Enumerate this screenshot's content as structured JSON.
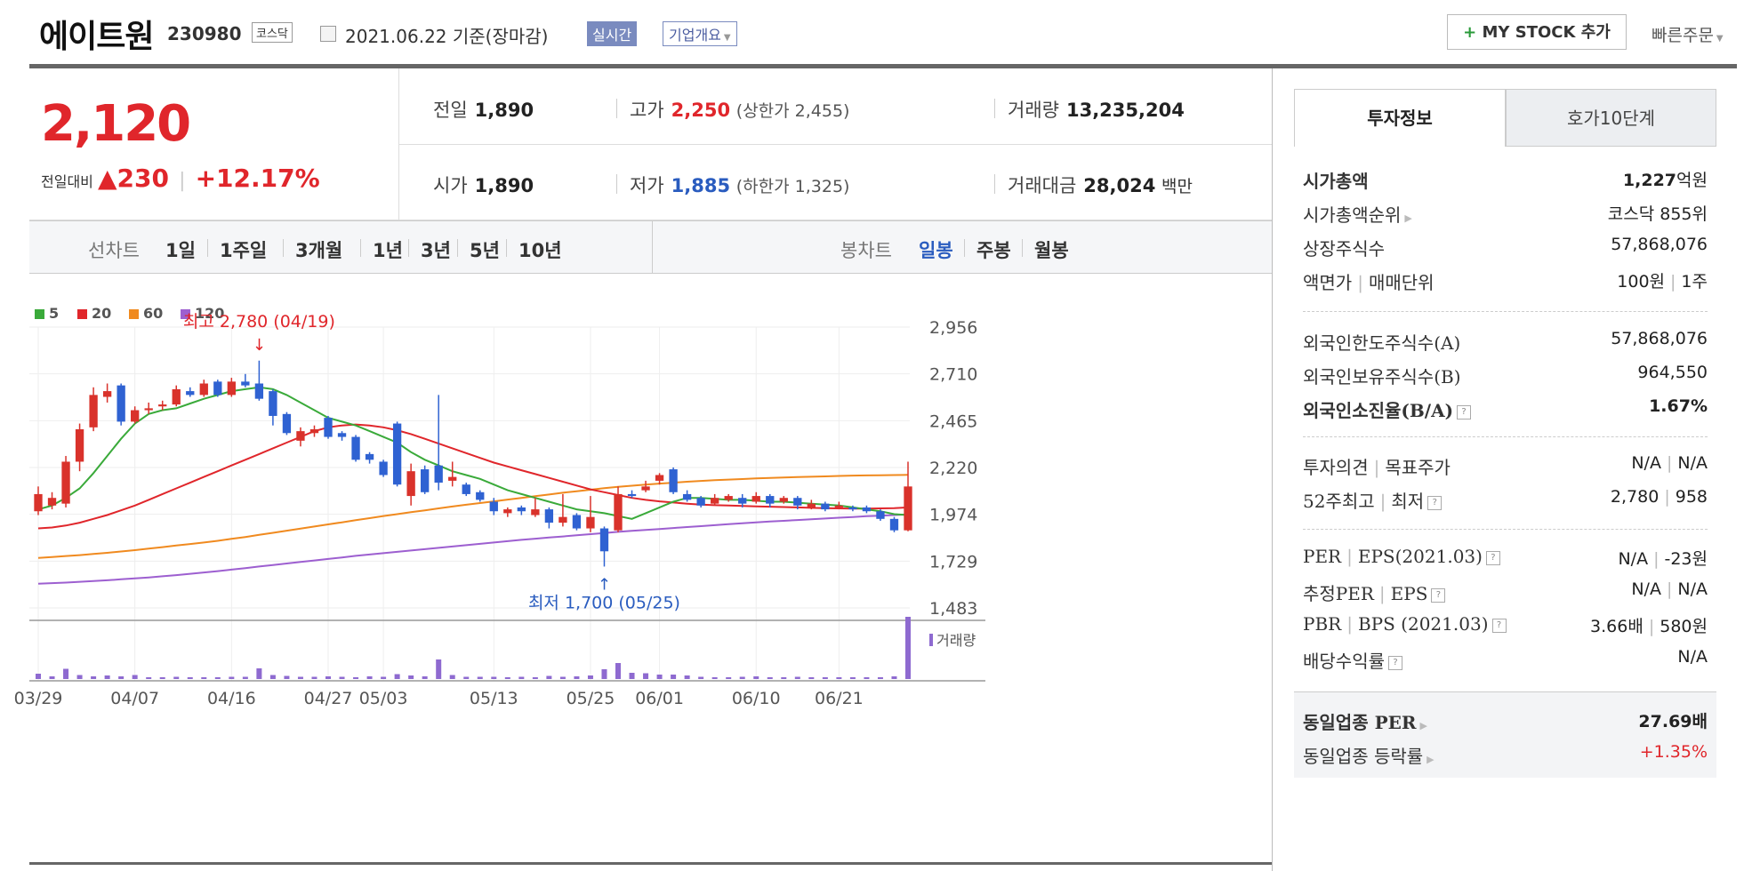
{
  "header": {
    "name": "에이트원",
    "code": "230980",
    "market": "코스닥",
    "date": "2021.06.22 기준(장마감)",
    "realtime": "실시간",
    "company_info": "기업개요",
    "mystock": "MY STOCK 추가",
    "quick_order": "빠른주문"
  },
  "price": {
    "current": "2,120",
    "change_label": "전일대비",
    "change_value": "230",
    "change_pct": "+12.17%"
  },
  "summary": {
    "prev": {
      "label": "전일",
      "value": "1,890"
    },
    "high": {
      "label": "고가",
      "value": "2,250",
      "sub": "(상한가 2,455)"
    },
    "volume": {
      "label": "거래량",
      "value": "13,235,204"
    },
    "open": {
      "label": "시가",
      "value": "1,890"
    },
    "low": {
      "label": "저가",
      "value": "1,885",
      "sub": "(하한가 1,325)"
    },
    "amount": {
      "label": "거래대금",
      "value": "28,024",
      "unit": "백만"
    }
  },
  "toolbar": {
    "line_label": "선차트",
    "periods": [
      "1일",
      "1주일",
      "3개월",
      "1년",
      "3년",
      "5년",
      "10년"
    ],
    "candle_label": "봉차트",
    "candles": [
      "일봉",
      "주봉",
      "월봉"
    ]
  },
  "chart_data": {
    "type": "candlestick",
    "legend": [
      "5",
      "20",
      "60",
      "120"
    ],
    "ma_colors": {
      "5": "#3aaa3a",
      "20": "#e0262b",
      "60": "#f08a1f",
      "120": "#9d5fd0"
    },
    "up_color": "#d9322b",
    "down_color": "#2f62d2",
    "y_ticks": [
      "2,956",
      "2,710",
      "2,465",
      "2,220",
      "1,974",
      "1,729",
      "1,483"
    ],
    "ylim": [
      1483,
      2956
    ],
    "x_labels": [
      {
        "i": 0,
        "label": "03/29"
      },
      {
        "i": 7,
        "label": "04/07"
      },
      {
        "i": 14,
        "label": "04/16"
      },
      {
        "i": 21,
        "label": "04/27"
      },
      {
        "i": 25,
        "label": "05/03"
      },
      {
        "i": 33,
        "label": "05/13"
      },
      {
        "i": 40,
        "label": "05/25"
      },
      {
        "i": 45,
        "label": "06/01"
      },
      {
        "i": 52,
        "label": "06/10"
      },
      {
        "i": 58,
        "label": "06/21"
      }
    ],
    "high_annotation": "최고 2,780 (04/19)",
    "low_annotation": "최저 1,700 (05/25)",
    "volume_label": "거래량",
    "candles": [
      {
        "o": 1990,
        "c": 2080,
        "h": 2120,
        "l": 1970
      },
      {
        "o": 2020,
        "c": 2060,
        "h": 2090,
        "l": 2000
      },
      {
        "o": 2030,
        "c": 2250,
        "h": 2280,
        "l": 2010
      },
      {
        "o": 2250,
        "c": 2420,
        "h": 2450,
        "l": 2200
      },
      {
        "o": 2430,
        "c": 2600,
        "h": 2640,
        "l": 2410
      },
      {
        "o": 2590,
        "c": 2620,
        "h": 2660,
        "l": 2560
      },
      {
        "o": 2650,
        "c": 2460,
        "h": 2660,
        "l": 2440
      },
      {
        "o": 2460,
        "c": 2520,
        "h": 2540,
        "l": 2450
      },
      {
        "o": 2520,
        "c": 2530,
        "h": 2560,
        "l": 2500
      },
      {
        "o": 2540,
        "c": 2550,
        "h": 2570,
        "l": 2520
      },
      {
        "o": 2550,
        "c": 2630,
        "h": 2650,
        "l": 2540
      },
      {
        "o": 2620,
        "c": 2600,
        "h": 2640,
        "l": 2590
      },
      {
        "o": 2600,
        "c": 2660,
        "h": 2680,
        "l": 2590
      },
      {
        "o": 2670,
        "c": 2600,
        "h": 2680,
        "l": 2590
      },
      {
        "o": 2600,
        "c": 2670,
        "h": 2690,
        "l": 2590
      },
      {
        "o": 2670,
        "c": 2650,
        "h": 2710,
        "l": 2640
      },
      {
        "o": 2660,
        "c": 2580,
        "h": 2780,
        "l": 2570
      },
      {
        "o": 2620,
        "c": 2490,
        "h": 2630,
        "l": 2440
      },
      {
        "o": 2500,
        "c": 2400,
        "h": 2510,
        "l": 2390
      },
      {
        "o": 2360,
        "c": 2410,
        "h": 2430,
        "l": 2330
      },
      {
        "o": 2400,
        "c": 2420,
        "h": 2440,
        "l": 2380
      },
      {
        "o": 2480,
        "c": 2380,
        "h": 2490,
        "l": 2370
      },
      {
        "o": 2400,
        "c": 2380,
        "h": 2410,
        "l": 2360
      },
      {
        "o": 2380,
        "c": 2260,
        "h": 2390,
        "l": 2250
      },
      {
        "o": 2290,
        "c": 2260,
        "h": 2300,
        "l": 2240
      },
      {
        "o": 2250,
        "c": 2180,
        "h": 2260,
        "l": 2170
      },
      {
        "o": 2450,
        "c": 2130,
        "h": 2460,
        "l": 2120
      },
      {
        "o": 2070,
        "c": 2200,
        "h": 2240,
        "l": 2020
      },
      {
        "o": 2210,
        "c": 2090,
        "h": 2230,
        "l": 2080
      },
      {
        "o": 2230,
        "c": 2140,
        "h": 2600,
        "l": 2100
      },
      {
        "o": 2150,
        "c": 2170,
        "h": 2250,
        "l": 2120
      },
      {
        "o": 2130,
        "c": 2080,
        "h": 2140,
        "l": 2070
      },
      {
        "o": 2090,
        "c": 2050,
        "h": 2100,
        "l": 2040
      },
      {
        "o": 2040,
        "c": 1990,
        "h": 2060,
        "l": 1970
      },
      {
        "o": 1980,
        "c": 2000,
        "h": 2010,
        "l": 1960
      },
      {
        "o": 2010,
        "c": 1990,
        "h": 2020,
        "l": 1970
      },
      {
        "o": 1970,
        "c": 2000,
        "h": 2060,
        "l": 1960
      },
      {
        "o": 2000,
        "c": 1930,
        "h": 2010,
        "l": 1900
      },
      {
        "o": 1930,
        "c": 1960,
        "h": 2080,
        "l": 1910
      },
      {
        "o": 1970,
        "c": 1900,
        "h": 1980,
        "l": 1890
      },
      {
        "o": 1900,
        "c": 1960,
        "h": 2070,
        "l": 1880
      },
      {
        "o": 1900,
        "c": 1780,
        "h": 1910,
        "l": 1700
      },
      {
        "o": 1890,
        "c": 2080,
        "h": 2120,
        "l": 1880
      },
      {
        "o": 2080,
        "c": 2070,
        "h": 2100,
        "l": 2060
      },
      {
        "o": 2100,
        "c": 2120,
        "h": 2150,
        "l": 2090
      },
      {
        "o": 2150,
        "c": 2180,
        "h": 2190,
        "l": 2130
      },
      {
        "o": 2210,
        "c": 2090,
        "h": 2220,
        "l": 2080
      },
      {
        "o": 2080,
        "c": 2050,
        "h": 2100,
        "l": 2040
      },
      {
        "o": 2060,
        "c": 2020,
        "h": 2070,
        "l": 2010
      },
      {
        "o": 2030,
        "c": 2060,
        "h": 2080,
        "l": 2020
      },
      {
        "o": 2050,
        "c": 2070,
        "h": 2080,
        "l": 2040
      },
      {
        "o": 2060,
        "c": 2030,
        "h": 2080,
        "l": 2010
      },
      {
        "o": 2040,
        "c": 2070,
        "h": 2090,
        "l": 2030
      },
      {
        "o": 2070,
        "c": 2030,
        "h": 2080,
        "l": 2010
      },
      {
        "o": 2040,
        "c": 2060,
        "h": 2070,
        "l": 2030
      },
      {
        "o": 2060,
        "c": 2020,
        "h": 2070,
        "l": 2000
      },
      {
        "o": 2010,
        "c": 2030,
        "h": 2050,
        "l": 2000
      },
      {
        "o": 2030,
        "c": 2000,
        "h": 2040,
        "l": 1990
      },
      {
        "o": 2010,
        "c": 2020,
        "h": 2040,
        "l": 2000
      },
      {
        "o": 2010,
        "c": 2000,
        "h": 2020,
        "l": 1990
      },
      {
        "o": 2010,
        "c": 1990,
        "h": 2020,
        "l": 1980
      },
      {
        "o": 1990,
        "c": 1950,
        "h": 2000,
        "l": 1940
      },
      {
        "o": 1950,
        "c": 1890,
        "h": 1960,
        "l": 1880
      },
      {
        "o": 1890,
        "c": 2120,
        "h": 2250,
        "l": 1885
      }
    ],
    "volumes": [
      1.2,
      0.6,
      2.3,
      0.9,
      0.6,
      0.8,
      0.6,
      0.9,
      0.4,
      0.4,
      0.5,
      0.4,
      0.4,
      0.4,
      0.5,
      0.5,
      2.4,
      0.9,
      0.7,
      0.5,
      0.5,
      0.6,
      0.5,
      0.4,
      0.6,
      0.5,
      1.1,
      0.8,
      0.6,
      4.4,
      0.9,
      0.5,
      0.5,
      0.5,
      0.4,
      0.5,
      0.4,
      0.7,
      0.5,
      0.6,
      0.8,
      2.2,
      3.6,
      1.4,
      1.3,
      1.0,
      1.0,
      0.8,
      0.5,
      0.4,
      0.4,
      0.5,
      0.6,
      0.4,
      0.4,
      0.5,
      0.4,
      0.4,
      0.4,
      0.4,
      0.4,
      0.4,
      0.6,
      14.0
    ],
    "ma5": [
      2000,
      2020,
      2060,
      2110,
      2190,
      2280,
      2370,
      2450,
      2500,
      2520,
      2530,
      2555,
      2580,
      2600,
      2620,
      2630,
      2640,
      2630,
      2600,
      2560,
      2520,
      2480,
      2460,
      2440,
      2410,
      2380,
      2350,
      2300,
      2260,
      2230,
      2200,
      2180,
      2160,
      2130,
      2100,
      2080,
      2060,
      2040,
      2020,
      2000,
      1990,
      1980,
      1965,
      1950,
      1980,
      2010,
      2040,
      2060,
      2060,
      2055,
      2050,
      2050,
      2045,
      2040,
      2040,
      2035,
      2030,
      2025,
      2020,
      2010,
      2000,
      1990,
      1975,
      1970
    ],
    "ma20": [
      1900,
      1905,
      1915,
      1930,
      1950,
      1970,
      1995,
      2020,
      2050,
      2080,
      2110,
      2140,
      2170,
      2200,
      2230,
      2260,
      2290,
      2320,
      2350,
      2380,
      2410,
      2430,
      2440,
      2445,
      2440,
      2430,
      2415,
      2395,
      2370,
      2345,
      2320,
      2295,
      2270,
      2245,
      2225,
      2205,
      2185,
      2165,
      2145,
      2125,
      2105,
      2090,
      2075,
      2060,
      2050,
      2042,
      2036,
      2030,
      2025,
      2022,
      2020,
      2018,
      2016,
      2014,
      2012,
      2010,
      2008,
      2006,
      2005,
      2004,
      2004,
      2005,
      2006,
      2010
    ],
    "ma60": [
      1745,
      1750,
      1755,
      1760,
      1766,
      1772,
      1779,
      1786,
      1794,
      1802,
      1810,
      1818,
      1826,
      1835,
      1845,
      1855,
      1866,
      1877,
      1888,
      1899,
      1910,
      1921,
      1932,
      1943,
      1954,
      1965,
      1975,
      1985,
      1995,
      2005,
      2015,
      2024,
      2033,
      2042,
      2051,
      2060,
      2069,
      2078,
      2087,
      2095,
      2103,
      2111,
      2118,
      2124,
      2130,
      2135,
      2140,
      2145,
      2149,
      2153,
      2156,
      2159,
      2162,
      2165,
      2167,
      2169,
      2171,
      2173,
      2175,
      2177,
      2178,
      2179,
      2180,
      2181
    ],
    "ma120": [
      1610,
      1613,
      1616,
      1620,
      1624,
      1628,
      1633,
      1638,
      1643,
      1649,
      1655,
      1662,
      1669,
      1676,
      1684,
      1692,
      1700,
      1708,
      1716,
      1724,
      1732,
      1740,
      1748,
      1756,
      1763,
      1770,
      1777,
      1784,
      1791,
      1798,
      1805,
      1812,
      1819,
      1826,
      1833,
      1840,
      1846,
      1852,
      1858,
      1864,
      1870,
      1876,
      1882,
      1887,
      1892,
      1897,
      1902,
      1907,
      1912,
      1917,
      1922,
      1927,
      1932,
      1936,
      1940,
      1944,
      1948,
      1952,
      1956,
      1960,
      1964,
      1967,
      1970,
      1973
    ]
  },
  "tabs": {
    "active": "투자정보",
    "inactive": "호가10단계"
  },
  "invest": {
    "market_cap": {
      "label": "시가총액",
      "value": "1,227",
      "unit": "억원"
    },
    "cap_rank": {
      "label": "시가총액순위",
      "value": "코스닥 855위"
    },
    "shares": {
      "label": "상장주식수",
      "value": "57,868,076"
    },
    "par": {
      "label_a": "액면가",
      "label_b": "매매단위",
      "value_a": "100원",
      "value_b": "1주"
    },
    "foreign_limit": {
      "label": "외국인한도주식수(A)",
      "value": "57,868,076"
    },
    "foreign_own": {
      "label": "외국인보유주식수(B)",
      "value": "964,550"
    },
    "foreign_rate": {
      "label": "외국인소진율(B/A)",
      "value": "1.67%"
    },
    "opinion": {
      "label_a": "투자의견",
      "label_b": "목표주가",
      "value_a": "N/A",
      "value_b": "N/A"
    },
    "w52": {
      "label_a": "52주최고",
      "label_b": "최저",
      "value_a": "2,780",
      "value_b": "958"
    },
    "per": {
      "label_a": "PER",
      "label_b": "EPS(2021.03)",
      "value_a": "N/A",
      "value_b": "-23원"
    },
    "est_per": {
      "label_a": "추정PER",
      "label_b": "EPS",
      "value_a": "N/A",
      "value_b": "N/A"
    },
    "pbr": {
      "label_a": "PBR",
      "label_b": "BPS (2021.03)",
      "value_a": "3.66배",
      "value_b": "580원"
    },
    "dividend": {
      "label": "배당수익률",
      "value": "N/A"
    },
    "sector_per": {
      "label": "동일업종 PER",
      "value": "27.69",
      "unit": "배"
    },
    "sector_rate": {
      "label": "동일업종 등락률",
      "value": "+1.35%"
    }
  }
}
